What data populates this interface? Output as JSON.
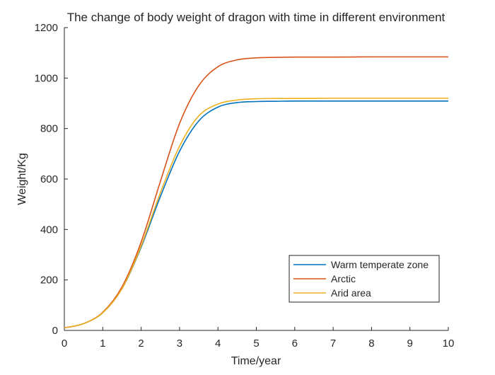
{
  "chart_data": {
    "type": "line",
    "title": "The change of body weight of dragon with time in different environment",
    "xlabel": "Time/year",
    "ylabel": "Weight/Kg",
    "xlim": [
      0,
      10
    ],
    "ylim": [
      0,
      1200
    ],
    "xticks": [
      "0",
      "1",
      "2",
      "3",
      "4",
      "5",
      "6",
      "7",
      "8",
      "9",
      "10"
    ],
    "yticks": [
      "0",
      "200",
      "400",
      "600",
      "800",
      "1000",
      "1200"
    ],
    "grid": false,
    "legend_position": "lower-right",
    "x": [
      0,
      0.5,
      1,
      1.5,
      2,
      2.5,
      3,
      3.5,
      4,
      4.5,
      5,
      5.5,
      6,
      7,
      8,
      9,
      10
    ],
    "series": [
      {
        "name": "Warm temperate zone",
        "color": "#0072BD",
        "values": [
          10,
          27,
          70,
          165,
          330,
          530,
          710,
          830,
          885,
          903,
          907,
          908,
          909,
          909,
          909,
          909,
          909
        ]
      },
      {
        "name": "Arctic",
        "color": "#D95319",
        "values": [
          10,
          27,
          72,
          172,
          350,
          590,
          820,
          970,
          1045,
          1072,
          1080,
          1082,
          1083,
          1083,
          1084,
          1084,
          1084
        ]
      },
      {
        "name": "Arid area",
        "color": "#EDB120",
        "values": [
          10,
          27,
          70,
          165,
          335,
          545,
          730,
          850,
          897,
          913,
          918,
          919,
          919,
          920,
          920,
          920,
          920
        ]
      }
    ]
  }
}
